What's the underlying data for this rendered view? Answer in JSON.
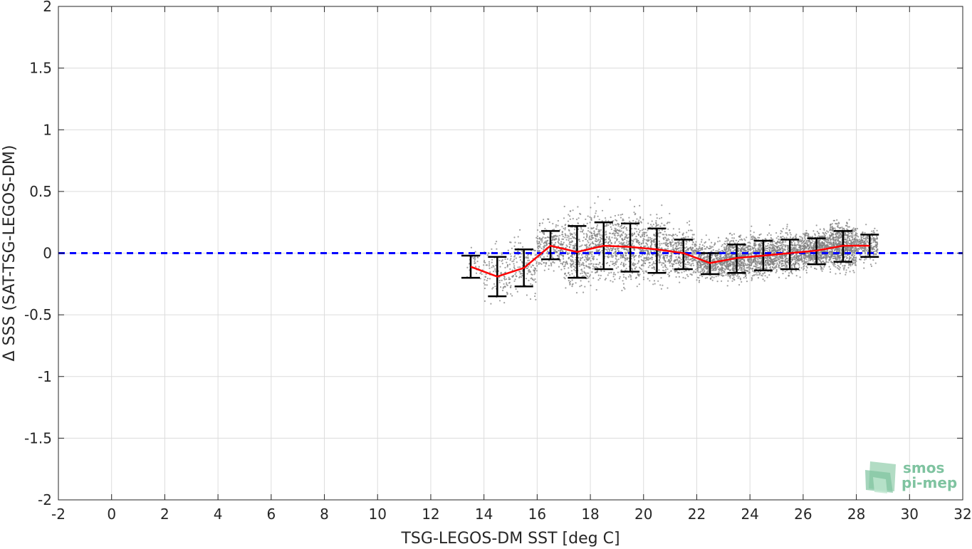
{
  "chart_data": {
    "type": "scatter",
    "xlabel": "TSG-LEGOS-DM SST [deg C]",
    "ylabel": "Δ SSS (SAT-TSG-LEGOS-DM)",
    "xlim": [
      -2,
      32
    ],
    "ylim": [
      -2,
      2
    ],
    "xticks": [
      -2,
      0,
      2,
      4,
      6,
      8,
      10,
      12,
      14,
      16,
      18,
      20,
      22,
      24,
      26,
      28,
      30,
      32
    ],
    "xtick_labels": [
      "-2",
      "0",
      "2",
      "4",
      "6",
      "8",
      "10",
      "12",
      "14",
      "16",
      "18",
      "20",
      "22",
      "24",
      "26",
      "28",
      "30",
      "32"
    ],
    "yticks": [
      -2,
      -1.5,
      -1,
      -0.5,
      0,
      0.5,
      1,
      1.5,
      2
    ],
    "ytick_labels": [
      "-2",
      "-1.5",
      "-1",
      "-0.5",
      "0",
      "0.5",
      "1",
      "1.5",
      "2"
    ],
    "grid": true,
    "reference_line": {
      "y": 0,
      "color": "#0000ff",
      "style": "dashed"
    },
    "binned_mean": {
      "color": "#ff0000",
      "x": [
        13.5,
        14.5,
        15.5,
        16.5,
        17.5,
        18.5,
        19.5,
        20.5,
        21.5,
        22.5,
        23.5,
        24.5,
        25.5,
        26.5,
        27.5,
        28.5
      ],
      "mean": [
        -0.11,
        -0.19,
        -0.12,
        0.06,
        0.01,
        0.06,
        0.05,
        0.03,
        0.0,
        -0.08,
        -0.04,
        -0.02,
        0.0,
        0.02,
        0.06,
        0.06
      ],
      "err_low": [
        -0.2,
        -0.35,
        -0.27,
        -0.05,
        -0.2,
        -0.13,
        -0.15,
        -0.16,
        -0.13,
        -0.17,
        -0.16,
        -0.14,
        -0.13,
        -0.09,
        -0.07,
        -0.03
      ],
      "err_high": [
        -0.02,
        -0.03,
        0.03,
        0.18,
        0.22,
        0.25,
        0.24,
        0.2,
        0.11,
        0.0,
        0.07,
        0.1,
        0.11,
        0.12,
        0.18,
        0.15
      ]
    },
    "scatter_color": "#808080",
    "scatter_clusters": [
      {
        "x": [
          13.3,
          14.0
        ],
        "y_center": -0.1,
        "y_spread": 0.07,
        "count": 40
      },
      {
        "x": [
          14.0,
          15.0
        ],
        "y_center": -0.16,
        "y_spread": 0.12,
        "count": 120
      },
      {
        "x": [
          15.0,
          16.0
        ],
        "y_center": -0.1,
        "y_spread": 0.12,
        "count": 160
      },
      {
        "x": [
          16.0,
          17.0
        ],
        "y_center": 0.05,
        "y_spread": 0.1,
        "count": 260
      },
      {
        "x": [
          17.0,
          18.0
        ],
        "y_center": 0.02,
        "y_spread": 0.16,
        "count": 320
      },
      {
        "x": [
          18.0,
          19.0
        ],
        "y_center": 0.06,
        "y_spread": 0.15,
        "count": 340
      },
      {
        "x": [
          19.0,
          20.0
        ],
        "y_center": 0.05,
        "y_spread": 0.15,
        "count": 360
      },
      {
        "x": [
          20.0,
          21.0
        ],
        "y_center": 0.03,
        "y_spread": 0.14,
        "count": 340
      },
      {
        "x": [
          21.0,
          22.0
        ],
        "y_center": 0.0,
        "y_spread": 0.1,
        "count": 320
      },
      {
        "x": [
          22.0,
          23.0
        ],
        "y_center": -0.07,
        "y_spread": 0.08,
        "count": 420
      },
      {
        "x": [
          23.0,
          24.0
        ],
        "y_center": -0.04,
        "y_spread": 0.09,
        "count": 620
      },
      {
        "x": [
          24.0,
          25.0
        ],
        "y_center": -0.02,
        "y_spread": 0.09,
        "count": 520
      },
      {
        "x": [
          25.0,
          26.0
        ],
        "y_center": 0.0,
        "y_spread": 0.09,
        "count": 480
      },
      {
        "x": [
          26.0,
          27.0
        ],
        "y_center": 0.03,
        "y_spread": 0.08,
        "count": 620
      },
      {
        "x": [
          27.0,
          28.0
        ],
        "y_center": 0.06,
        "y_spread": 0.1,
        "count": 680
      },
      {
        "x": [
          28.0,
          28.8
        ],
        "y_center": 0.06,
        "y_spread": 0.07,
        "count": 240
      }
    ]
  },
  "logo": {
    "line1": "smos",
    "line2": "pi-mep",
    "color": "#7fc3a0"
  }
}
